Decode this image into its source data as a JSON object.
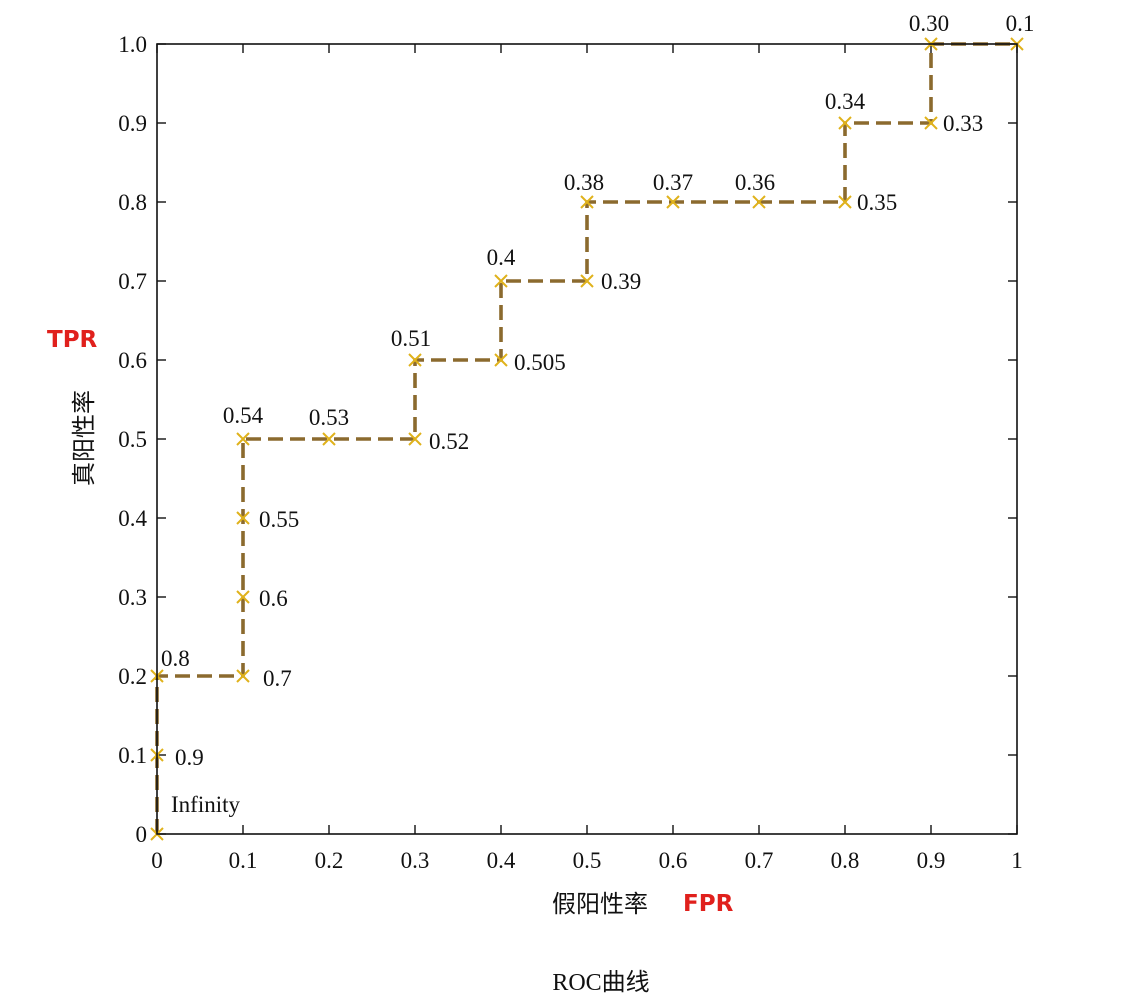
{
  "chart_data": {
    "type": "line",
    "title": "ROC曲线",
    "xlabel": "假阳性率",
    "xlabel_en": "FPR",
    "ylabel": "真阳性率",
    "ylabel_en": "TPR",
    "xlim": [
      0,
      1
    ],
    "ylim": [
      0,
      1
    ],
    "grid": false,
    "x_ticks": [
      "0",
      "0.1",
      "0.2",
      "0.3",
      "0.4",
      "0.5",
      "0.6",
      "0.7",
      "0.8",
      "0.9",
      "1"
    ],
    "y_ticks": [
      "0",
      "0.1",
      "0.2",
      "0.3",
      "0.4",
      "0.5",
      "0.6",
      "0.7",
      "0.8",
      "0.9",
      "1.0"
    ],
    "series": [
      {
        "points": [
          {
            "x": 0,
            "y": 0,
            "label": "Infinity"
          },
          {
            "x": 0,
            "y": 0.1,
            "label": "0.9"
          },
          {
            "x": 0,
            "y": 0.2,
            "label": "0.8"
          },
          {
            "x": 0.1,
            "y": 0.2,
            "label": "0.7"
          },
          {
            "x": 0.1,
            "y": 0.3,
            "label": "0.6"
          },
          {
            "x": 0.1,
            "y": 0.4,
            "label": "0.55"
          },
          {
            "x": 0.1,
            "y": 0.5,
            "label": "0.54"
          },
          {
            "x": 0.2,
            "y": 0.5,
            "label": "0.53"
          },
          {
            "x": 0.3,
            "y": 0.5,
            "label": "0.52"
          },
          {
            "x": 0.3,
            "y": 0.6,
            "label": "0.51"
          },
          {
            "x": 0.4,
            "y": 0.6,
            "label": "0.505"
          },
          {
            "x": 0.4,
            "y": 0.7,
            "label": "0.4"
          },
          {
            "x": 0.5,
            "y": 0.7,
            "label": "0.39"
          },
          {
            "x": 0.5,
            "y": 0.8,
            "label": "0.38"
          },
          {
            "x": 0.6,
            "y": 0.8,
            "label": "0.37"
          },
          {
            "x": 0.7,
            "y": 0.8,
            "label": "0.36"
          },
          {
            "x": 0.8,
            "y": 0.8,
            "label": "0.35"
          },
          {
            "x": 0.8,
            "y": 0.9,
            "label": "0.34"
          },
          {
            "x": 0.9,
            "y": 0.9,
            "label": "0.33"
          },
          {
            "x": 0.9,
            "y": 1.0,
            "label": "0.30"
          },
          {
            "x": 1.0,
            "y": 1.0,
            "label": "0.1"
          }
        ]
      }
    ],
    "colors": {
      "line": "#8B6A2E",
      "marker": "#E0B21B",
      "axis_en_label": "#E0201C"
    }
  }
}
